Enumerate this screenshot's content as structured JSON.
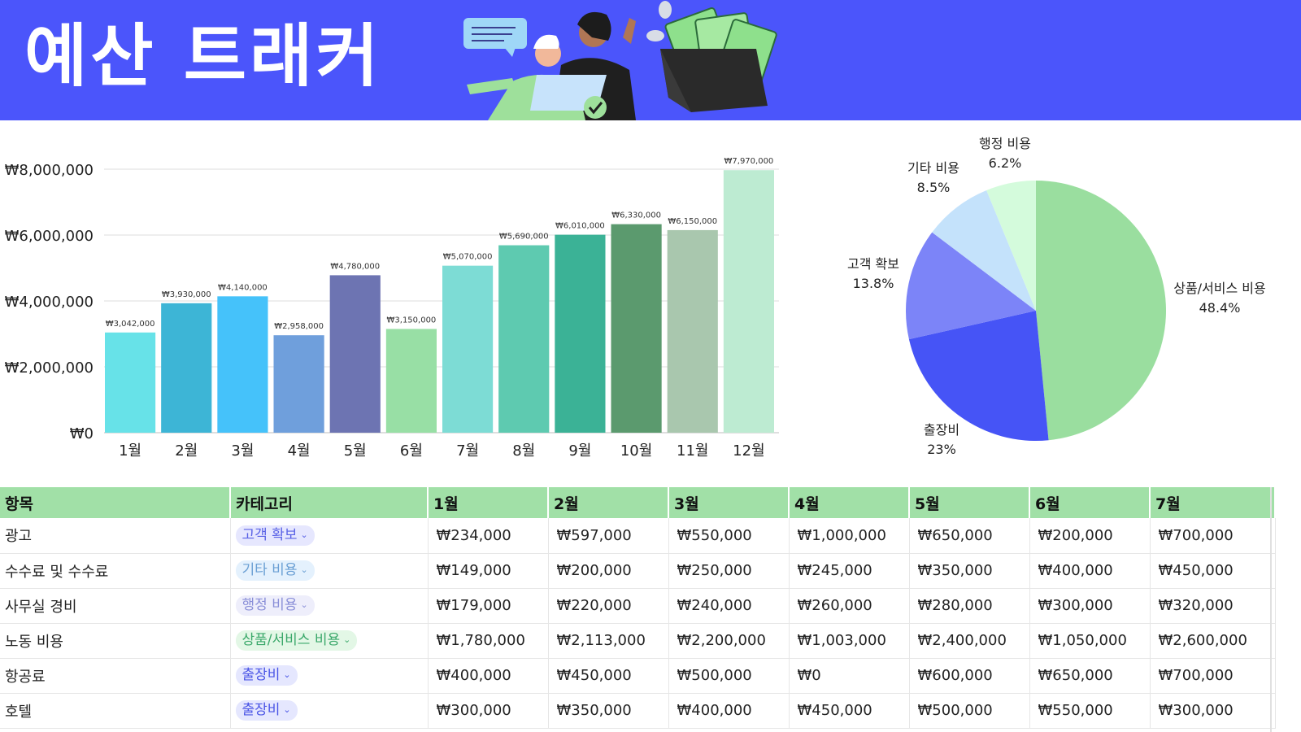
{
  "header": {
    "title": "예산 트래커",
    "bg_color": "#4b55fb"
  },
  "chart_data": [
    {
      "type": "bar",
      "categories": [
        "1월",
        "2월",
        "3월",
        "4월",
        "5월",
        "6월",
        "7월",
        "8월",
        "9월",
        "10월",
        "11월",
        "12월"
      ],
      "values": [
        3042000,
        3930000,
        4140000,
        2958000,
        4780000,
        3150000,
        5070000,
        5690000,
        6010000,
        6330000,
        6150000,
        7970000
      ],
      "value_labels": [
        "₩3,042,000",
        "₩3,930,000",
        "₩4,140,000",
        "₩2,958,000",
        "₩4,780,000",
        "₩3,150,000",
        "₩5,070,000",
        "₩5,690,000",
        "₩6,010,000",
        "₩6,330,000",
        "₩6,150,000",
        "₩7,970,000"
      ],
      "colors": [
        "#67e2e8",
        "#3db5d6",
        "#45c2fa",
        "#6f9fdc",
        "#6d74b2",
        "#98dfa5",
        "#7ddcd5",
        "#5ecab0",
        "#3bb296",
        "#5b9a6e",
        "#a9c7ae",
        "#bdebd2"
      ],
      "yticks": [
        0,
        2000000,
        4000000,
        6000000,
        8000000
      ],
      "ytick_labels": [
        "₩0",
        "₩2,000,000",
        "₩4,000,000",
        "₩6,000,000",
        "₩8,000,000"
      ],
      "ylim": [
        0,
        8000000
      ],
      "grid": true,
      "legend": false
    },
    {
      "type": "pie",
      "slices": [
        {
          "label": "상품/서비스 비용",
          "value": 48.4,
          "pct_label": "48.4%",
          "color": "#9ade9f"
        },
        {
          "label": "출장비",
          "value": 23,
          "pct_label": "23%",
          "color": "#4654f6"
        },
        {
          "label": "고객 확보",
          "value": 13.8,
          "pct_label": "13.8%",
          "color": "#7c84f8"
        },
        {
          "label": "기타 비용",
          "value": 8.5,
          "pct_label": "8.5%",
          "color": "#c4e2fb"
        },
        {
          "label": "행정 비용",
          "value": 6.2,
          "pct_label": "6.2%",
          "color": "#d4fbdc"
        }
      ],
      "start": "top",
      "direction": "clockwise",
      "legend": false
    }
  ],
  "table": {
    "headers": [
      "항목",
      "카테고리",
      "1월",
      "2월",
      "3월",
      "4월",
      "5월",
      "6월",
      "7월"
    ],
    "rows": [
      {
        "item": "광고",
        "category": "고객 확보",
        "cat_bg": "#e6e7fe",
        "cat_fg": "#5a62e6",
        "values": [
          "₩234,000",
          "₩597,000",
          "₩550,000",
          "₩1,000,000",
          "₩650,000",
          "₩200,000",
          "₩700,000"
        ]
      },
      {
        "item": "수수료 및 수수료",
        "category": "기타 비용",
        "cat_bg": "#e4f1fd",
        "cat_fg": "#6a9fd4",
        "values": [
          "₩149,000",
          "₩200,000",
          "₩250,000",
          "₩245,000",
          "₩350,000",
          "₩400,000",
          "₩450,000"
        ]
      },
      {
        "item": "사무실 경비",
        "category": "행정 비용",
        "cat_bg": "#eeeefb",
        "cat_fg": "#8a8fd8",
        "values": [
          "₩179,000",
          "₩220,000",
          "₩240,000",
          "₩260,000",
          "₩280,000",
          "₩300,000",
          "₩320,000"
        ]
      },
      {
        "item": "노동 비용",
        "category": "상품/서비스 비용",
        "cat_bg": "#e3f7e6",
        "cat_fg": "#3aa86a",
        "values": [
          "₩1,780,000",
          "₩2,113,000",
          "₩2,200,000",
          "₩1,003,000",
          "₩2,400,000",
          "₩1,050,000",
          "₩2,600,000"
        ]
      },
      {
        "item": "항공료",
        "category": "출장비",
        "cat_bg": "#e5e7fe",
        "cat_fg": "#4a55e6",
        "values": [
          "₩400,000",
          "₩450,000",
          "₩500,000",
          "₩0",
          "₩600,000",
          "₩650,000",
          "₩700,000"
        ]
      },
      {
        "item": "호텔",
        "category": "출장비",
        "cat_bg": "#e5e7fe",
        "cat_fg": "#4a55e6",
        "values": [
          "₩300,000",
          "₩350,000",
          "₩400,000",
          "₩450,000",
          "₩500,000",
          "₩550,000",
          "₩300,000"
        ]
      }
    ]
  }
}
